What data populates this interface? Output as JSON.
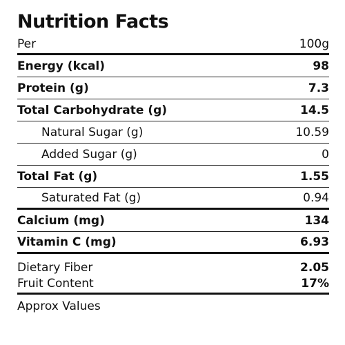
{
  "title": "Nutrition Facts",
  "per_label": "Per",
  "per_value": "100g",
  "rows": [
    {
      "label": "Energy (kcal)",
      "value": "98"
    },
    {
      "label": "Protein (g)",
      "value": "7.3"
    },
    {
      "label": "Total Carbohydrate (g)",
      "value": "14.5"
    },
    {
      "label": "Natural Sugar (g)",
      "value": "10.59"
    },
    {
      "label": "Added Sugar (g)",
      "value": "0"
    },
    {
      "label": "Total Fat (g)",
      "value": "1.55"
    },
    {
      "label": "Saturated Fat (g)",
      "value": "0.94"
    },
    {
      "label": "Calcium (mg)",
      "value": "134"
    },
    {
      "label": "Vitamin C (mg)",
      "value": "6.93"
    },
    {
      "label": "Dietary Fiber",
      "value": "2.05"
    },
    {
      "label": "Fruit Content",
      "value": "17%"
    }
  ],
  "footnote": "Approx Values"
}
